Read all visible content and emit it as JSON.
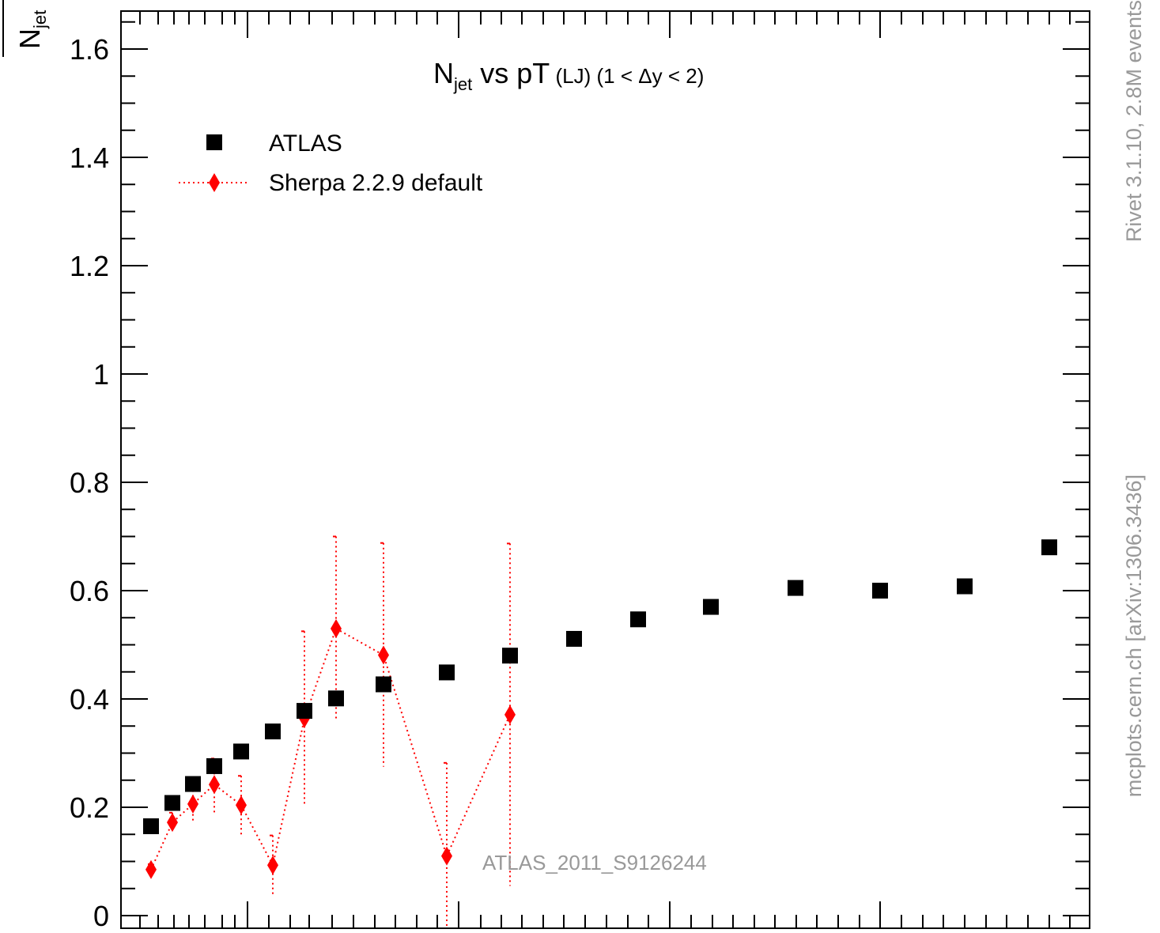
{
  "chart_data": {
    "type": "scatter",
    "title_main": "N",
    "title_sub": "jet",
    "title_rest": " vs pT",
    "title_small": " (LJ)",
    "title_range": " (1 < Δy < 2)",
    "ylabel_main": "N",
    "ylabel_sub": "jet",
    "ylim": [
      0,
      1.65
    ],
    "y_ticks": [
      "0",
      "0.2",
      "0.4",
      "0.6",
      "0.8",
      "1",
      "1.2",
      "1.4",
      "1.6"
    ],
    "legend_position": "top-left",
    "series": [
      {
        "name": "ATLAS",
        "marker": "square",
        "color": "#000000",
        "points": [
          {
            "x": 0,
            "y": 0.165
          },
          {
            "x": 1,
            "y": 0.208
          },
          {
            "x": 2,
            "y": 0.243
          },
          {
            "x": 3,
            "y": 0.276
          },
          {
            "x": 4,
            "y": 0.303
          },
          {
            "x": 5,
            "y": 0.34
          },
          {
            "x": 6,
            "y": 0.378
          },
          {
            "x": 7,
            "y": 0.401
          },
          {
            "x": 8,
            "y": 0.427
          },
          {
            "x": 9,
            "y": 0.449
          },
          {
            "x": 10,
            "y": 0.48
          },
          {
            "x": 11,
            "y": 0.511
          },
          {
            "x": 12,
            "y": 0.547
          },
          {
            "x": 13,
            "y": 0.57
          },
          {
            "x": 14,
            "y": 0.605
          },
          {
            "x": 15,
            "y": 0.6
          },
          {
            "x": 16,
            "y": 0.608
          },
          {
            "x": 17,
            "y": 0.68
          }
        ]
      },
      {
        "name": "Sherpa 2.2.9 default",
        "marker": "diamond",
        "line": "dotted",
        "color": "#ff0000",
        "points": [
          {
            "x": 0,
            "y": 0.085,
            "lo": 0.075,
            "hi": 0.095
          },
          {
            "x": 1,
            "y": 0.172,
            "lo": 0.155,
            "hi": 0.19
          },
          {
            "x": 2,
            "y": 0.206,
            "lo": 0.17,
            "hi": 0.24
          },
          {
            "x": 3,
            "y": 0.242,
            "lo": 0.19,
            "hi": 0.29
          },
          {
            "x": 4,
            "y": 0.204,
            "lo": 0.15,
            "hi": 0.258
          },
          {
            "x": 5,
            "y": 0.093,
            "lo": 0.04,
            "hi": 0.148
          },
          {
            "x": 6,
            "y": 0.364,
            "lo": 0.205,
            "hi": 0.525
          },
          {
            "x": 7,
            "y": 0.53,
            "lo": 0.36,
            "hi": 0.7
          },
          {
            "x": 8,
            "y": 0.481,
            "lo": 0.275,
            "hi": 0.688
          },
          {
            "x": 9,
            "y": 0.11,
            "lo": -0.06,
            "hi": 0.282
          },
          {
            "x": 10,
            "y": 0.371,
            "lo": 0.055,
            "hi": 0.687
          }
        ]
      }
    ],
    "watermark": "ATLAS_2011_S9126244",
    "side_text_top": "Rivet 3.1.10,  2.8M events",
    "side_text_bottom": "mcplots.cern.ch [arXiv:1306.3436]"
  }
}
